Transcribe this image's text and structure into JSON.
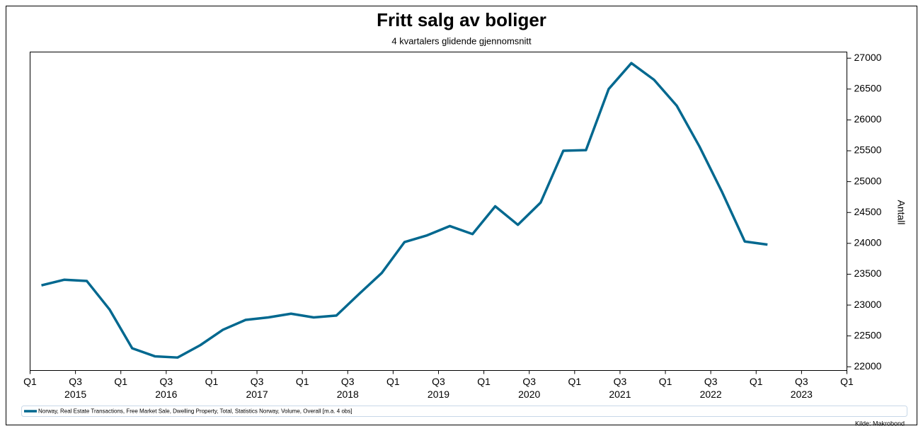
{
  "chart_data": {
    "type": "line",
    "title": "Fritt salg av boliger",
    "subtitle": "4 kvartalers glidende gjennomsnitt",
    "y_axis_label": "Antall",
    "source": "Kilde: Makrobond",
    "x": [
      2015.125,
      2015.375,
      2015.625,
      2015.875,
      2016.125,
      2016.375,
      2016.625,
      2016.875,
      2017.125,
      2017.375,
      2017.625,
      2017.875,
      2018.125,
      2018.375,
      2018.625,
      2018.875,
      2019.125,
      2019.375,
      2019.625,
      2019.875,
      2020.125,
      2020.375,
      2020.625,
      2020.875,
      2021.125,
      2021.375,
      2021.625,
      2021.875,
      2022.125,
      2022.375,
      2022.625,
      2022.875,
      2023.125
    ],
    "series": [
      {
        "name": "Norway, Real Estate Transactions, Free Market Sale, Dwelling Property, Total, Statistics Norway, Volume, Overall [m.a. 4 obs]",
        "color": "#00688f",
        "values": [
          23320,
          23410,
          23390,
          22930,
          22300,
          22170,
          22150,
          22350,
          22600,
          22760,
          22800,
          22860,
          22800,
          22830,
          23180,
          23520,
          24020,
          24130,
          24280,
          24150,
          24600,
          24300,
          24660,
          25500,
          25510,
          26500,
          26920,
          26650,
          26230,
          25570,
          24830,
          24030,
          23980
        ]
      }
    ],
    "xlim": [
      2015,
      2024
    ],
    "xticks": [
      {
        "value": 2015,
        "label": "Q1"
      },
      {
        "value": 2015.5,
        "label": "Q3"
      },
      {
        "value": 2016,
        "label": "Q1"
      },
      {
        "value": 2016.5,
        "label": "Q3"
      },
      {
        "value": 2017,
        "label": "Q1"
      },
      {
        "value": 2017.5,
        "label": "Q3"
      },
      {
        "value": 2018,
        "label": "Q1"
      },
      {
        "value": 2018.5,
        "label": "Q3"
      },
      {
        "value": 2019,
        "label": "Q1"
      },
      {
        "value": 2019.5,
        "label": "Q3"
      },
      {
        "value": 2020,
        "label": "Q1"
      },
      {
        "value": 2020.5,
        "label": "Q3"
      },
      {
        "value": 2021,
        "label": "Q1"
      },
      {
        "value": 2021.5,
        "label": "Q3"
      },
      {
        "value": 2022,
        "label": "Q1"
      },
      {
        "value": 2022.5,
        "label": "Q3"
      },
      {
        "value": 2023,
        "label": "Q1"
      },
      {
        "value": 2023.5,
        "label": "Q3"
      },
      {
        "value": 2024,
        "label": "Q1"
      }
    ],
    "year_labels": [
      {
        "value": 2015.5,
        "label": "2015"
      },
      {
        "value": 2016.5,
        "label": "2016"
      },
      {
        "value": 2017.5,
        "label": "2017"
      },
      {
        "value": 2018.5,
        "label": "2018"
      },
      {
        "value": 2019.5,
        "label": "2019"
      },
      {
        "value": 2020.5,
        "label": "2020"
      },
      {
        "value": 2021.5,
        "label": "2021"
      },
      {
        "value": 2022.5,
        "label": "2022"
      },
      {
        "value": 2023.5,
        "label": "2023"
      }
    ],
    "ylim": [
      21940,
      27100
    ],
    "yticks": [
      22000,
      22500,
      23000,
      23500,
      24000,
      24500,
      25000,
      25500,
      26000,
      26500,
      27000
    ],
    "grid": false,
    "legend": "bottom"
  }
}
